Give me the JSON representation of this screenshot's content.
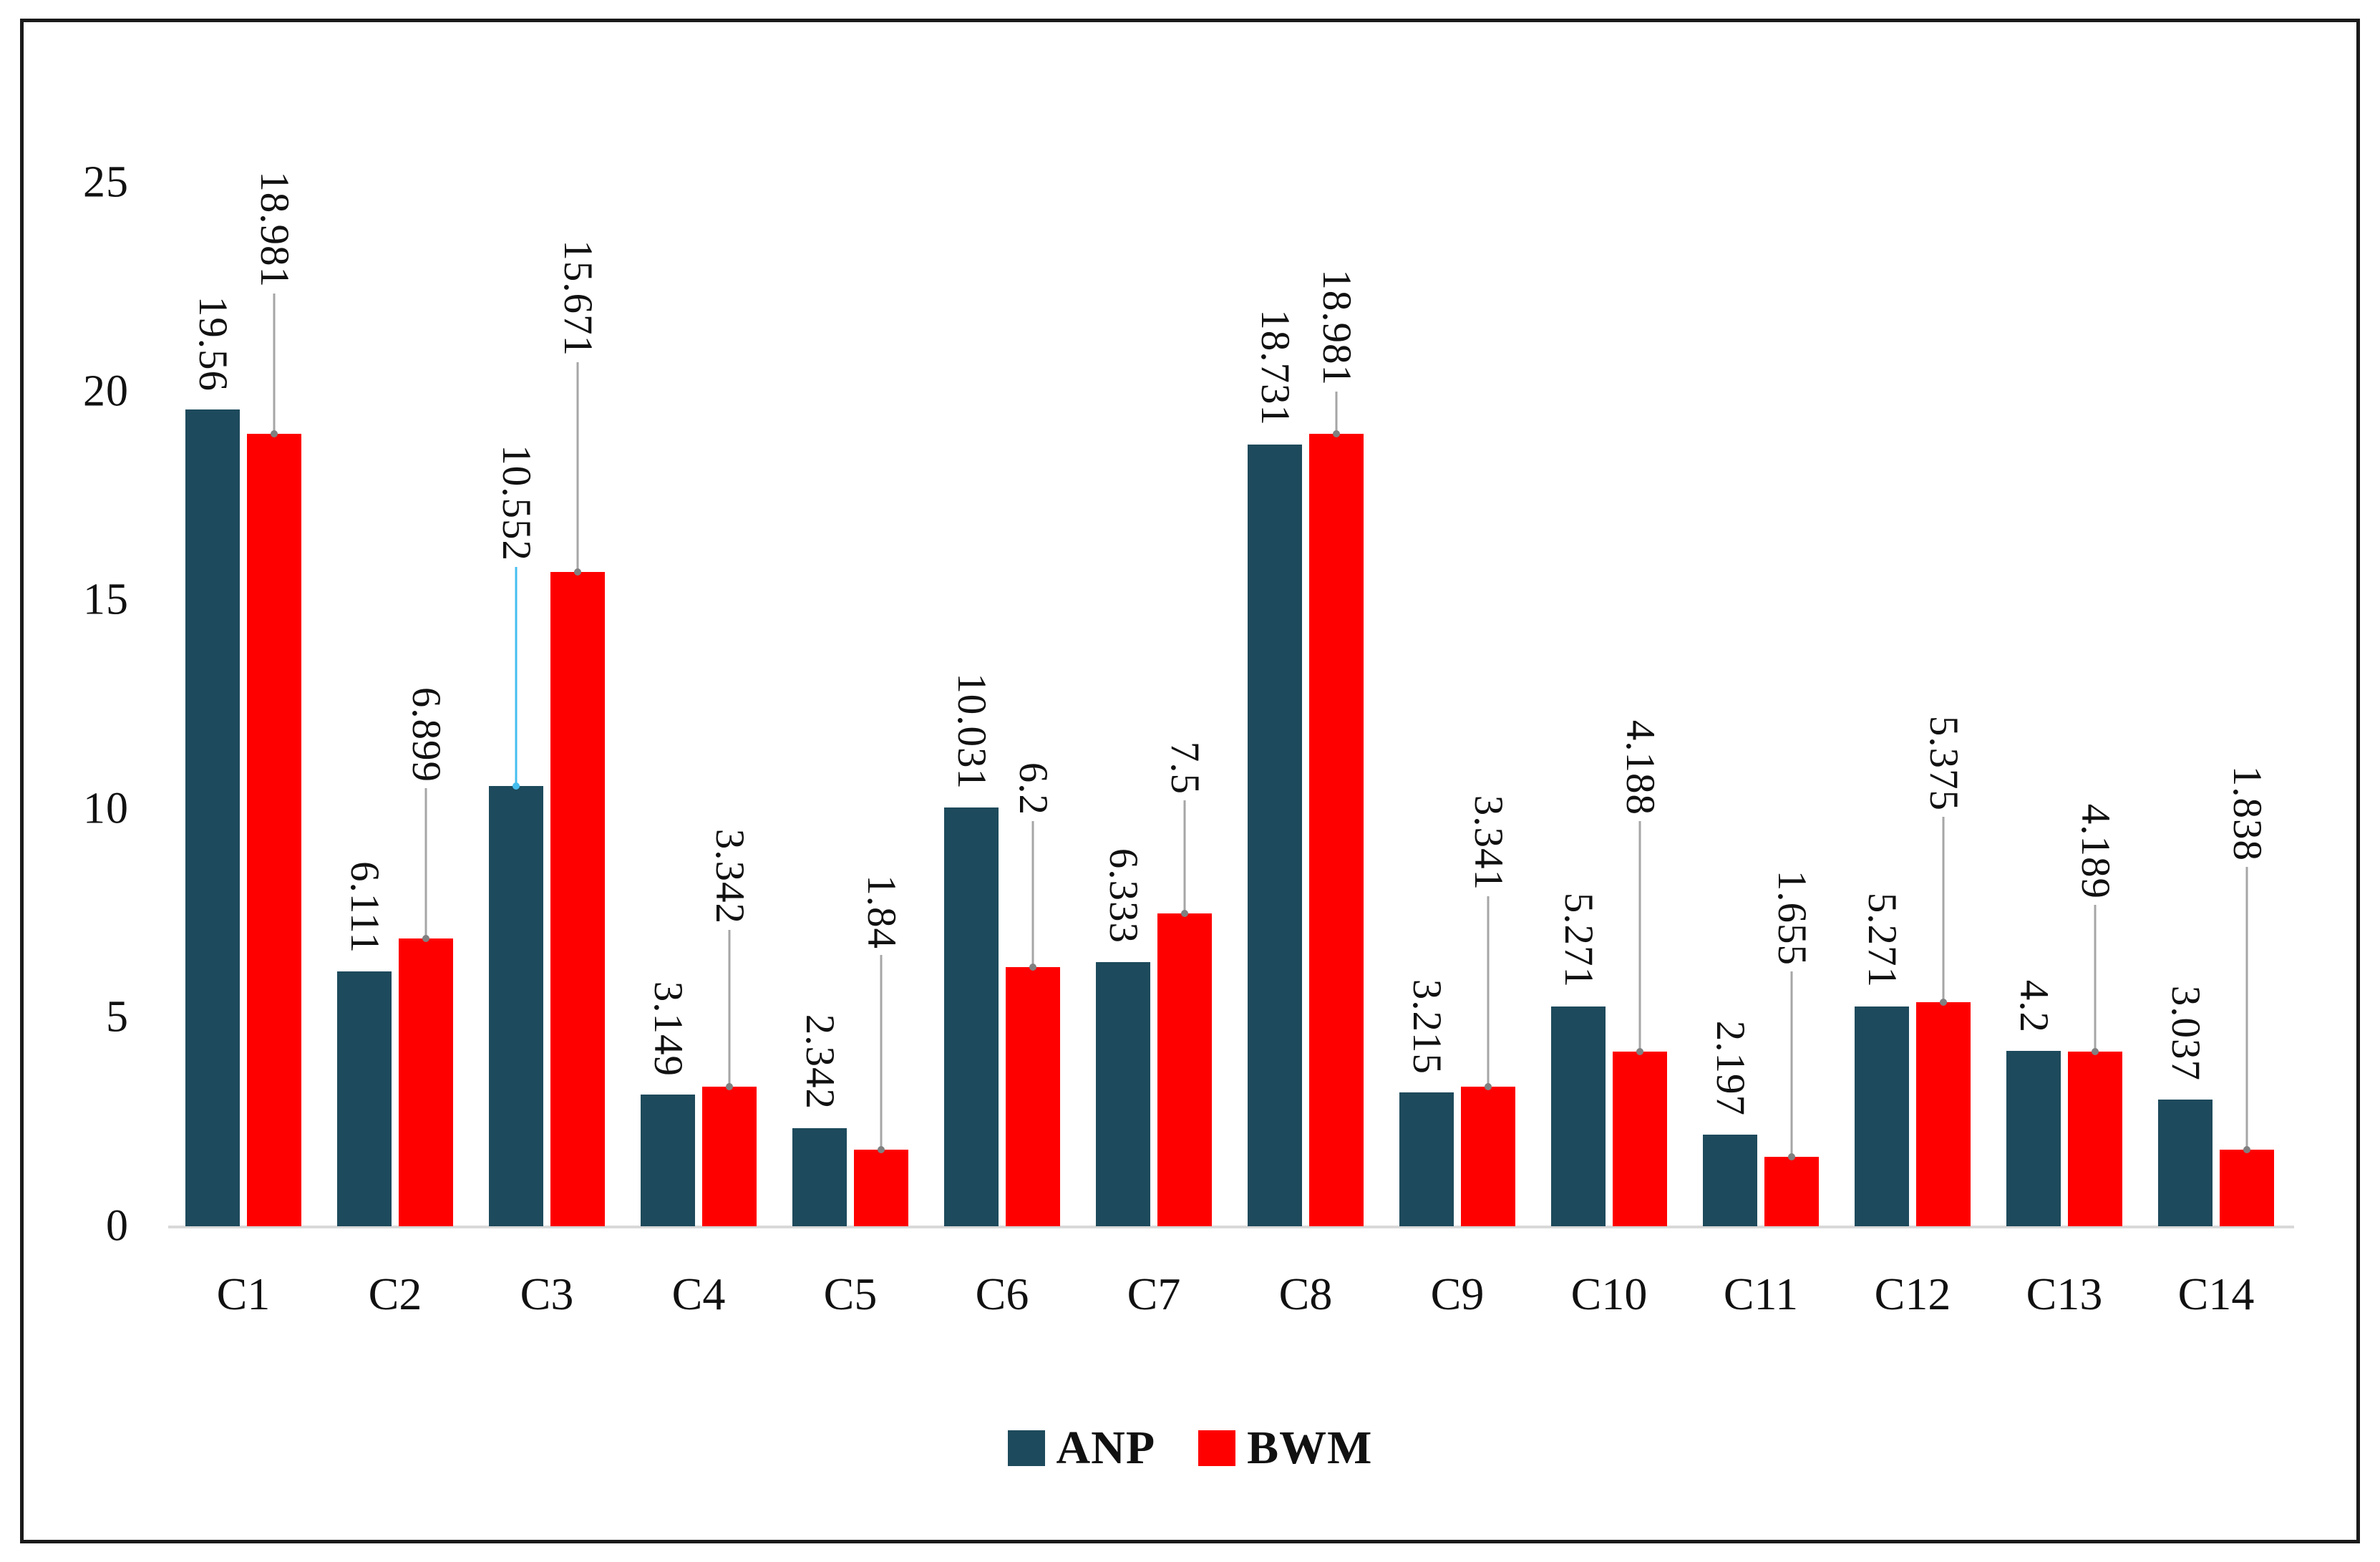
{
  "chart_data": {
    "type": "bar",
    "title": "",
    "xlabel": "",
    "ylabel": "",
    "categories": [
      "C1",
      "C2",
      "C3",
      "C4",
      "C5",
      "C6",
      "C7",
      "C8",
      "C9",
      "C10",
      "C11",
      "C12",
      "C13",
      "C14"
    ],
    "series": [
      {
        "name": "ANP",
        "color": "#1D4A5C",
        "values": [
          19.56,
          6.111,
          10.552,
          3.149,
          2.342,
          10.031,
          6.333,
          18.731,
          3.215,
          5.271,
          2.197,
          5.271,
          4.2,
          3.037
        ],
        "label_anchors": [
          19.85,
          6.4,
          15.8,
          3.45,
          2.65,
          10.33,
          6.63,
          19.03,
          3.5,
          5.57,
          2.5,
          5.57,
          4.5,
          3.34
        ],
        "leader_color_overrides": {
          "2": "#44BEEF"
        }
      },
      {
        "name": "BWM",
        "color": "#FE0000",
        "values": [
          18.981,
          6.899,
          15.671,
          3.342,
          1.84,
          6.2,
          7.5,
          18.981,
          3.341,
          4.188,
          1.655,
          5.375,
          4.189,
          1.838
        ],
        "label_anchors": [
          22.35,
          10.5,
          20.7,
          7.1,
          6.5,
          9.7,
          10.2,
          20.0,
          7.9,
          9.7,
          6.1,
          9.8,
          7.7,
          8.6
        ],
        "leader_color_overrides": {}
      }
    ],
    "ylim": [
      0,
      25
    ],
    "yticks": [
      0,
      5,
      10,
      15,
      20,
      25
    ],
    "grid": false,
    "legend_position": "bottom",
    "leader_line_color": "#A6A6A6",
    "axis_line_color": "#D9D9D9",
    "label_text_color": "#111111"
  },
  "legend": {
    "anp": "ANP",
    "bwm": "BWM"
  }
}
